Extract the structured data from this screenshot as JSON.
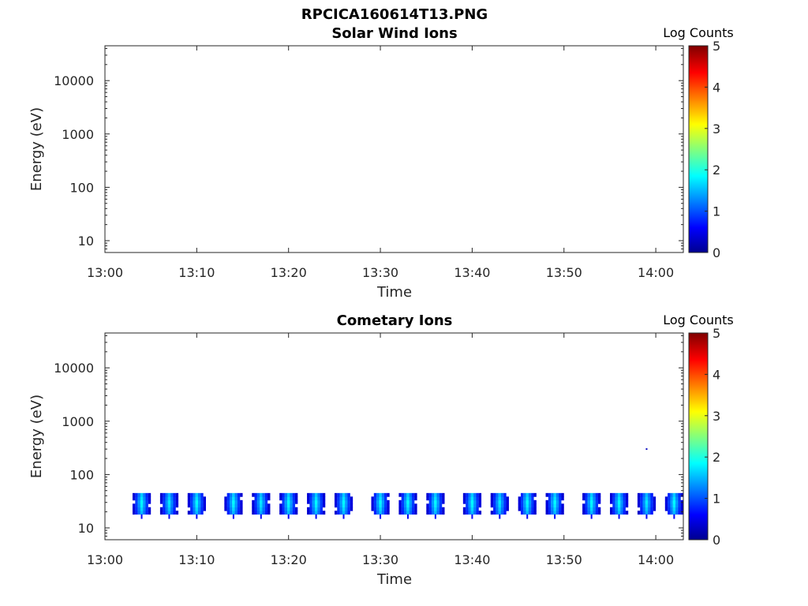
{
  "figure": {
    "file_title": "RPCICA160614T13.PNG"
  },
  "colors": {
    "axis": "#262626",
    "background": "#ffffff",
    "colormap": "jet"
  },
  "chart_data": [
    {
      "type": "heatmap",
      "title": "Solar Wind Ions",
      "xlabel": "Time",
      "ylabel": "Energy (eV)",
      "x_tick_labels": [
        "13:00",
        "13:10",
        "13:20",
        "13:30",
        "13:40",
        "13:50",
        "14:00"
      ],
      "y_tick_labels": [
        "10",
        "100",
        "1000",
        "10000"
      ],
      "y_scale": "log",
      "xlim": [
        "13:00",
        "14:03"
      ],
      "ylim": [
        6,
        45000
      ],
      "grid": false,
      "colorbar": {
        "label": "Log Counts",
        "range": [
          0,
          5
        ],
        "tick_labels": [
          "0",
          "1",
          "2",
          "3",
          "4",
          "5"
        ]
      },
      "series": []
    },
    {
      "type": "heatmap",
      "title": "Cometary Ions",
      "xlabel": "Time",
      "ylabel": "Energy (eV)",
      "x_tick_labels": [
        "13:00",
        "13:10",
        "13:20",
        "13:30",
        "13:40",
        "13:50",
        "14:00"
      ],
      "y_tick_labels": [
        "10",
        "100",
        "1000",
        "10000"
      ],
      "y_scale": "log",
      "xlim": [
        "13:00",
        "14:03"
      ],
      "ylim": [
        6,
        45000
      ],
      "grid": false,
      "colorbar": {
        "label": "Log Counts",
        "range": [
          0,
          5
        ],
        "tick_labels": [
          "0",
          "1",
          "2",
          "3",
          "4",
          "5"
        ]
      },
      "bursts": [
        {
          "time": "13:04",
          "peak_log_counts": 1.9
        },
        {
          "time": "13:07",
          "peak_log_counts": 1.8
        },
        {
          "time": "13:10",
          "peak_log_counts": 1.9
        },
        {
          "time": "13:14",
          "peak_log_counts": 1.9
        },
        {
          "time": "13:17",
          "peak_log_counts": 1.8
        },
        {
          "time": "13:20",
          "peak_log_counts": 1.9
        },
        {
          "time": "13:23",
          "peak_log_counts": 1.9
        },
        {
          "time": "13:26",
          "peak_log_counts": 1.9
        },
        {
          "time": "13:30",
          "peak_log_counts": 1.9
        },
        {
          "time": "13:33",
          "peak_log_counts": 1.9
        },
        {
          "time": "13:36",
          "peak_log_counts": 1.9
        },
        {
          "time": "13:40",
          "peak_log_counts": 1.9
        },
        {
          "time": "13:43",
          "peak_log_counts": 1.8
        },
        {
          "time": "13:46",
          "peak_log_counts": 1.9
        },
        {
          "time": "13:49",
          "peak_log_counts": 1.9
        },
        {
          "time": "13:53",
          "peak_log_counts": 1.9
        },
        {
          "time": "13:56",
          "peak_log_counts": 1.9
        },
        {
          "time": "13:59",
          "peak_log_counts": 1.8
        },
        {
          "time": "14:02",
          "peak_log_counts": 1.9
        }
      ],
      "energy_band_eV": [
        18,
        45
      ],
      "isolated_points": [
        {
          "time": "13:59",
          "energy_eV": 300,
          "log_counts": 0.3
        }
      ]
    }
  ]
}
